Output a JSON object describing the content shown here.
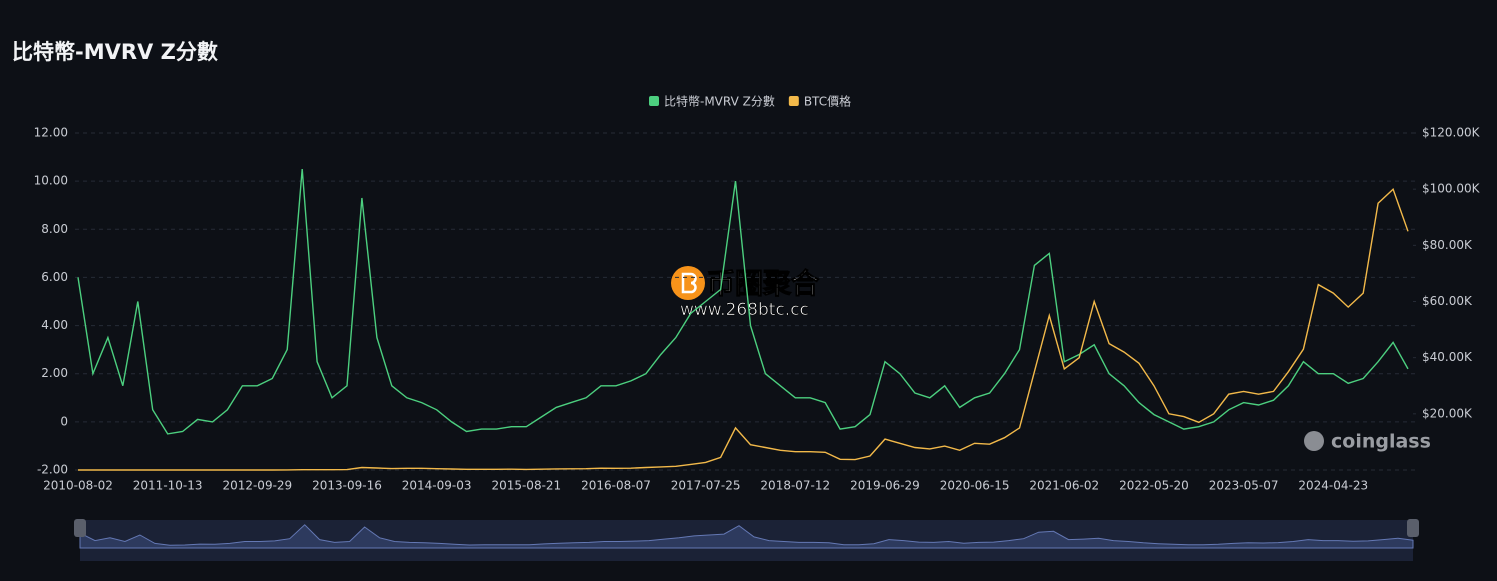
{
  "chart_data": {
    "type": "line",
    "title": "比特幣-MVRV Z分數",
    "categories": [
      "2010-08-02",
      null,
      null,
      null,
      null,
      null,
      "2011-10-13",
      null,
      null,
      null,
      null,
      null,
      "2012-09-29",
      null,
      null,
      null,
      null,
      null,
      "2013-09-16",
      null,
      null,
      null,
      null,
      null,
      "2014-09-03",
      null,
      null,
      null,
      null,
      null,
      "2015-08-21",
      null,
      null,
      null,
      null,
      null,
      "2016-08-07",
      null,
      null,
      null,
      null,
      null,
      "2017-07-25",
      null,
      null,
      null,
      null,
      null,
      "2018-07-12",
      null,
      null,
      null,
      null,
      null,
      "2019-06-29",
      null,
      null,
      null,
      null,
      null,
      "2020-06-15",
      null,
      null,
      null,
      null,
      null,
      "2021-06-02",
      null,
      null,
      null,
      null,
      null,
      "2022-05-20",
      null,
      null,
      null,
      null,
      null,
      "2023-05-07",
      null,
      null,
      null,
      null,
      null,
      "2024-04-23",
      null,
      null,
      null,
      null,
      null
    ],
    "series": [
      {
        "name": "比特幣-MVRV Z分數",
        "color": "#4ccf7f",
        "values": [
          6,
          2.0,
          3.5,
          1.5,
          5,
          0.5,
          -0.5,
          -0.4,
          0.1,
          0.0,
          0.5,
          1.5,
          1.5,
          1.8,
          3.0,
          10.5,
          2.5,
          1.0,
          1.5,
          9.3,
          3.5,
          1.5,
          1.0,
          0.8,
          0.5,
          0.0,
          -0.4,
          -0.3,
          -0.3,
          -0.2,
          -0.2,
          0.2,
          0.6,
          0.8,
          1.0,
          1.5,
          1.5,
          1.7,
          2.0,
          2.8,
          3.5,
          4.5,
          5.0,
          5.5,
          10.0,
          4.0,
          2.0,
          1.5,
          1.0,
          1.0,
          0.8,
          -0.3,
          -0.2,
          0.3,
          2.5,
          2.0,
          1.2,
          1.0,
          1.5,
          0.6,
          1.0,
          1.2,
          2.0,
          3.0,
          6.5,
          7.0,
          2.5,
          2.8,
          3.2,
          2.0,
          1.5,
          0.8,
          0.3,
          0.0,
          -0.3,
          -0.2,
          0.0,
          0.5,
          0.8,
          0.7,
          0.9,
          1.5,
          2.5,
          2.0,
          2.0,
          1.6,
          1.8,
          2.5,
          3.3,
          2.2
        ]
      },
      {
        "name": "BTC價格",
        "color": "#f2b94a",
        "axis": "y2",
        "values": [
          0.1,
          0.3,
          1,
          1,
          15,
          8,
          4,
          3,
          5,
          5,
          5,
          10,
          12,
          13,
          45,
          120,
          100,
          100,
          130,
          900,
          700,
          500,
          600,
          600,
          450,
          350,
          250,
          250,
          240,
          280,
          230,
          280,
          400,
          420,
          450,
          650,
          600,
          650,
          900,
          1100,
          1300,
          2000,
          2700,
          4500,
          15000,
          9000,
          8000,
          7000,
          6500,
          6500,
          6300,
          3800,
          3700,
          5000,
          11000,
          9500,
          8000,
          7500,
          8500,
          7000,
          9500,
          9200,
          11500,
          15000,
          35000,
          55000,
          36000,
          40000,
          60000,
          45000,
          42000,
          38000,
          30000,
          20000,
          19000,
          17000,
          20000,
          27000,
          28000,
          27000,
          28000,
          35000,
          43000,
          66000,
          63000,
          58000,
          63000,
          95000,
          100000,
          85000
        ]
      }
    ],
    "ylim": [
      -2,
      12
    ],
    "yticks": [
      {
        "value": -2,
        "label": "-2.00"
      },
      0,
      {
        "value": 2,
        "label": "2.00"
      },
      {
        "value": 4,
        "label": "4.00"
      },
      {
        "value": 6,
        "label": "6.00"
      },
      {
        "value": 8,
        "label": "8.00"
      },
      {
        "value": 10,
        "label": "10.00"
      },
      {
        "value": 12,
        "label": "12.00"
      }
    ],
    "y2lim": [
      0,
      120000
    ],
    "y2ticks": [
      {
        "value": 20000,
        "label": "$20.00K"
      },
      {
        "value": 40000,
        "label": "$40.00K"
      },
      {
        "value": 60000,
        "label": "$60.00K"
      },
      {
        "value": 80000,
        "label": "$80.00K"
      },
      {
        "value": 100000,
        "label": "$100.00K"
      },
      {
        "value": 120000,
        "label": "$120.00K"
      }
    ],
    "grid": true,
    "legend": "top"
  },
  "watermark": {
    "brand": "币圈聚合",
    "url": "www.268btc.cc",
    "source": "coinglass"
  }
}
